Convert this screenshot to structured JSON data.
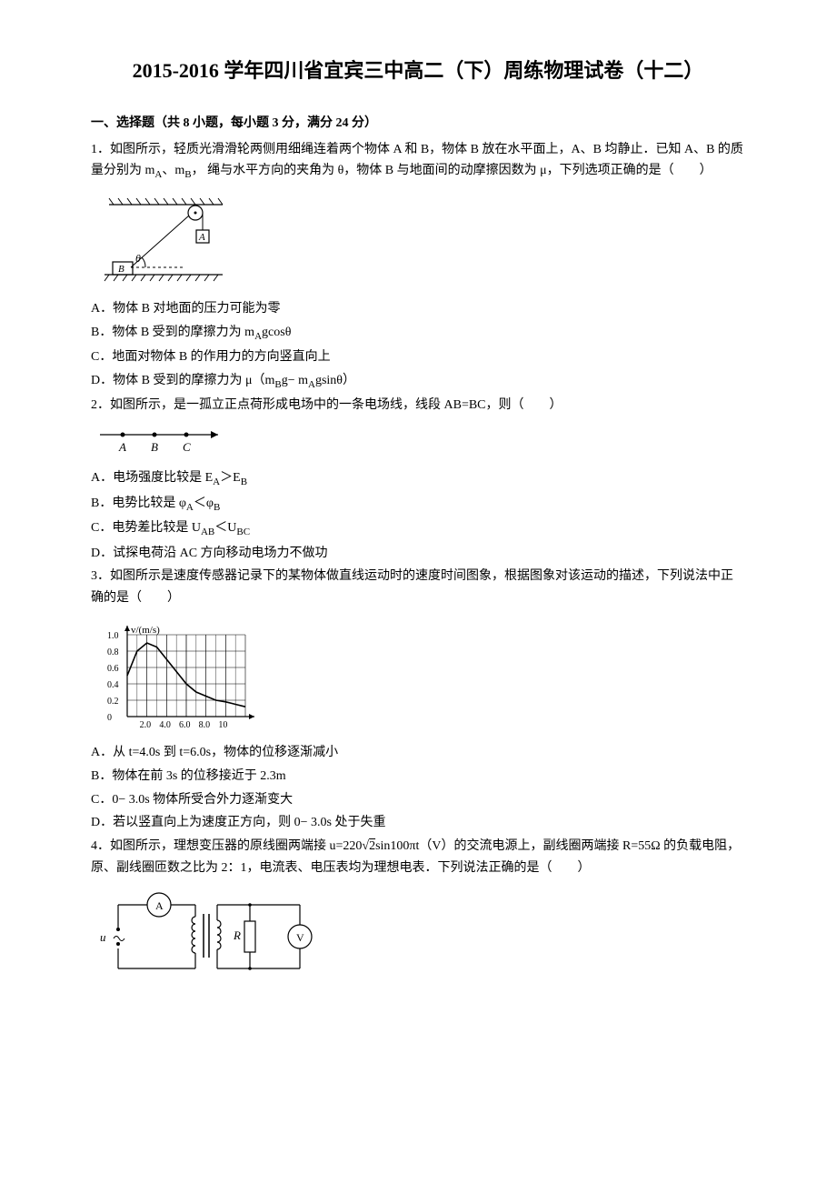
{
  "title": "2015-2016 学年四川省宜宾三中高二（下）周练物理试卷（十二）",
  "section1_header": "一、选择题（共 8 小题，每小题 3 分，满分 24 分）",
  "q1": {
    "text": "1．如图所示，轻质光滑滑轮两侧用细绳连着两个物体 A 和 B，物体 B 放在水平面上，A、B 均静止．已知 A、B 的质量分别为 m",
    "text_cont1": "、m",
    "text_cont2": "， 绳与水平方向的夹角为 θ，物体 B 与地面间的动摩擦因数为 μ，下列选项正确的是（　　）",
    "optA_pre": "A．物体 B 对地面的压力可能为零",
    "optB_pre": "B．物体 B 受到的摩擦力为 m",
    "optB_post": "gcosθ",
    "optC_pre": "C．地面对物体 B 的作用力的方向竖直向上",
    "optD_pre": "D．物体 B 受到的摩擦力为 μ（m",
    "optD_mid": "g− m",
    "optD_post": "gsinθ）"
  },
  "q2": {
    "text": "2．如图所示，是一孤立正点荷形成电场中的一条电场线，线段 AB=BC，则（　　）",
    "labelA": "A",
    "labelB": "B",
    "labelC": "C",
    "optA_pre": "A．电场强度比较是 E",
    "optA_mid": "＞E",
    "optB_pre": "B．电势比较是 φ",
    "optB_mid": "＜φ",
    "optC_pre": "C．电势差比较是 U",
    "optC_mid": "＜U",
    "optD": "D．试探电荷沿 AC 方向移动电场力不做功"
  },
  "q3": {
    "text": "3．如图所示是速度传感器记录下的某物体做直线运动时的速度时间图象，根据图象对该运动的描述，下列说法中正确的是（　　）",
    "chart": {
      "type": "line",
      "ylabel": "v/(m/s)",
      "ymax": 1.0,
      "yticks": [
        0,
        0.2,
        0.4,
        0.6,
        0.8,
        1.0
      ],
      "ytick_labels": [
        "0",
        "0.2",
        "0.4",
        "0.6",
        "0.8",
        "1.0"
      ],
      "xmax": 12,
      "xticks": [
        0,
        2,
        4,
        6,
        8,
        10,
        12
      ],
      "xtick_labels": [
        "",
        "2.0",
        "4.0",
        "6.0",
        "8.0",
        "10",
        ""
      ],
      "line_color": "#000000",
      "grid_color": "#000000",
      "bg_color": "#ffffff",
      "data_points": [
        {
          "x": 0,
          "y": 0.5
        },
        {
          "x": 1,
          "y": 0.8
        },
        {
          "x": 2,
          "y": 0.9
        },
        {
          "x": 3,
          "y": 0.85
        },
        {
          "x": 4,
          "y": 0.7
        },
        {
          "x": 5,
          "y": 0.55
        },
        {
          "x": 6,
          "y": 0.4
        },
        {
          "x": 7,
          "y": 0.3
        },
        {
          "x": 8,
          "y": 0.25
        },
        {
          "x": 9,
          "y": 0.2
        },
        {
          "x": 10,
          "y": 0.18
        },
        {
          "x": 11,
          "y": 0.15
        },
        {
          "x": 12,
          "y": 0.12
        }
      ]
    },
    "optA": "A．从 t=4.0s 到 t=6.0s，物体的位移逐渐减小",
    "optB": "B．物体在前 3s 的位移接近于 2.3m",
    "optC": "C．0− 3.0s 物体所受合外力逐渐变大",
    "optD": "D．若以竖直向上为速度正方向，则 0− 3.0s 处于失重"
  },
  "q4": {
    "text_pre": "4．如图所示，理想变压器的原线圈两端接 u=220√",
    "text_sqrt": "2",
    "text_post": "sin100πt（V）的交流电源上，副线圈两端接 R=55Ω 的负载电阻，原、副线圈匝数之比为 2：1，电流表、电压表均为理想电表．下列说法正确的是（　　）",
    "labels": {
      "u": "u",
      "A": "A",
      "R": "R",
      "V": "V"
    }
  },
  "subs": {
    "A": "A",
    "B": "B",
    "AB": "AB",
    "BC": "BC"
  },
  "colors": {
    "text": "#000000",
    "bg": "#ffffff",
    "line": "#000000"
  }
}
